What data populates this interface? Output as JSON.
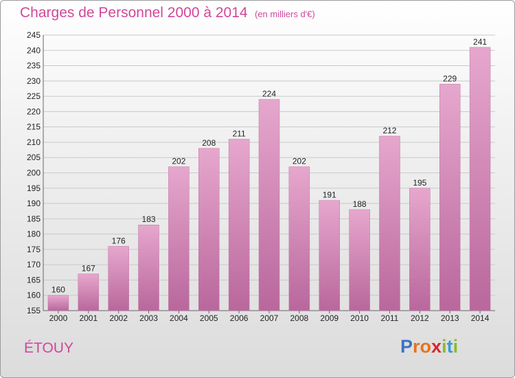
{
  "title": "Charges de Personnel 2000 à 2014",
  "subtitle": "(en milliers d'€)",
  "commune": "ÉTOUY",
  "logo": {
    "letters": [
      "P",
      "r",
      "o",
      "x",
      "i",
      "t",
      "i"
    ],
    "colors": [
      "#3a74c4",
      "#e8731b",
      "#e8731b",
      "#d7262e",
      "#8cb92b",
      "#3a9bd6",
      "#8cb92b"
    ]
  },
  "colors": {
    "accent": "#d0479a",
    "bar_top": "#e6a7cd",
    "bar_bottom": "#b9679c"
  },
  "chart_data": {
    "type": "bar",
    "categories": [
      "2000",
      "2001",
      "2002",
      "2003",
      "2004",
      "2005",
      "2006",
      "2007",
      "2008",
      "2009",
      "2010",
      "2011",
      "2012",
      "2013",
      "2014"
    ],
    "values": [
      160,
      167,
      176,
      183,
      202,
      208,
      211,
      224,
      202,
      191,
      188,
      212,
      195,
      229,
      241
    ],
    "title": "Charges de Personnel 2000 à 2014",
    "xlabel": "",
    "ylabel": "",
    "ylim": [
      155,
      245
    ],
    "yticks": [
      155,
      160,
      165,
      170,
      175,
      180,
      185,
      190,
      195,
      200,
      205,
      210,
      215,
      220,
      225,
      230,
      235,
      240,
      245
    ],
    "grid": true,
    "legend": "none"
  }
}
